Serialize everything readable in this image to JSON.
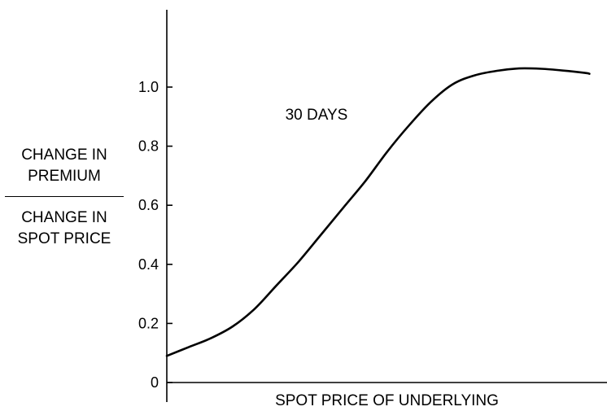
{
  "chart_data": {
    "type": "line",
    "title": "",
    "xlabel": "SPOT PRICE OF UNDERLYING",
    "ylabel": {
      "numerator": "CHANGE IN PREMIUM",
      "numerator_lines": [
        "CHANGE IN",
        "PREMIUM"
      ],
      "denominator": "CHANGE IN SPOT PRICE",
      "denominator_lines": [
        "CHANGE IN",
        "SPOT PRICE"
      ]
    },
    "ylim": [
      0,
      1.2
    ],
    "xlim": [
      0,
      1
    ],
    "yticks": [
      0,
      0.2,
      0.4,
      0.6,
      0.8,
      1.0
    ],
    "ytick_labels": [
      "0",
      "0.2",
      "0.4",
      "0.6",
      "0.8",
      "1.0"
    ],
    "xticks_shown": false,
    "grid": false,
    "annotations": [
      {
        "text": "30 DAYS",
        "x": 0.34,
        "y": 0.89
      }
    ],
    "series": [
      {
        "x": [
          0.0,
          0.05,
          0.1,
          0.15,
          0.2,
          0.25,
          0.3,
          0.35,
          0.4,
          0.45,
          0.5,
          0.55,
          0.6,
          0.65,
          0.7,
          0.75,
          0.8,
          0.85,
          0.9,
          0.95,
          0.96
        ],
        "y": [
          0.09,
          0.12,
          0.15,
          0.19,
          0.25,
          0.33,
          0.41,
          0.5,
          0.59,
          0.68,
          0.78,
          0.87,
          0.95,
          1.01,
          1.04,
          1.055,
          1.063,
          1.062,
          1.056,
          1.048,
          1.045
        ]
      }
    ]
  }
}
